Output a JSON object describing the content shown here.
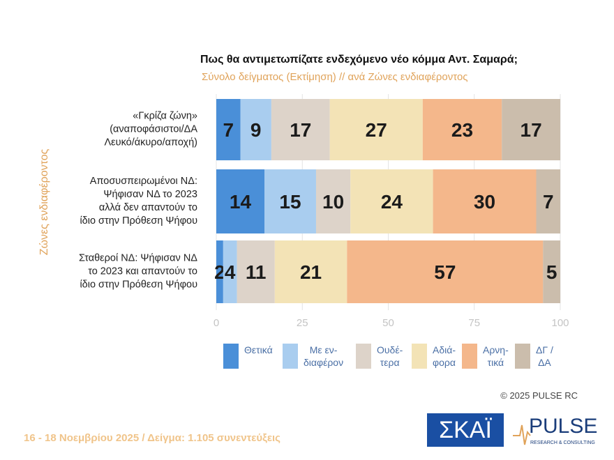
{
  "chart_data": {
    "type": "stacked-bar-horizontal",
    "title": "Πως θα αντιμετωπίζατε ενδεχόμενο νέο κόμμα Αντ. Σαμαρά;",
    "subtitle": "Σύνολο δείγματος   (Εκτίμηση) // ανά Ζώνες ενδιαφέροντος",
    "y_label": "Ζώνες ενδιαφέροντος",
    "categories": [
      "«Γκρίζα ζώνη»\n(αναποφάσιστοι/ΔΑ\nΛευκό/άκυρο/αποχή)",
      "Αποσυσπειρωμένοι ΝΔ:\nΨήφισαν ΝΔ το 2023\nαλλά δεν απαντούν το\nίδιο στην Πρόθεση Ψήφου",
      "Σταθεροί ΝΔ: Ψήφισαν ΝΔ\nτο 2023 και απαντούν το\nίδιο στην Πρόθεση Ψήφου"
    ],
    "series": [
      {
        "name": "Θετικά",
        "color": "#4a8fd8",
        "values": [
          7,
          14,
          2
        ]
      },
      {
        "name": "Με εν-\nδιαφέρον",
        "color": "#a9cdef",
        "values": [
          9,
          15,
          4
        ]
      },
      {
        "name": "Ουδέ-\nτερα",
        "color": "#ddd3c9",
        "values": [
          17,
          10,
          11
        ]
      },
      {
        "name": "Αδιά-\nφορα",
        "color": "#f3e3b6",
        "values": [
          27,
          24,
          21
        ]
      },
      {
        "name": "Αρνη-\nτικά",
        "color": "#f4b78b",
        "values": [
          23,
          30,
          57
        ]
      },
      {
        "name": "ΔΓ /\nΔΑ",
        "color": "#cbbdac",
        "values": [
          17,
          7,
          5
        ]
      }
    ],
    "xlim": [
      0,
      100
    ],
    "xticks": [
      0,
      25,
      50,
      75,
      100
    ],
    "grid": true,
    "copyright": "© 2025 PULSE RC",
    "footer": "16 - 18 Νοεμβρίου 2025  /  Δείγμα:  1.105 συνεντεύξεις",
    "logos": {
      "skai": "ΣΚΑΪ",
      "pulse": "PULSE",
      "pulse_sub": "RESEARCH & CONSULTING"
    }
  }
}
